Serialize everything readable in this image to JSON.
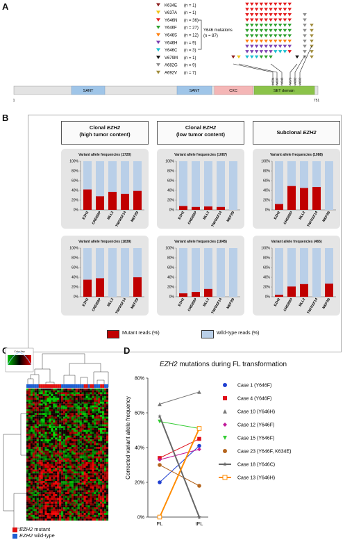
{
  "panelA": {
    "label": "A",
    "mutations": [
      {
        "name": "K634E",
        "count": "(n = 1)",
        "color": "#8b1a1a"
      },
      {
        "name": "V637A",
        "count": "(n = 1)",
        "color": "#f0c419"
      },
      {
        "name": "Y646N",
        "count": "(n = 36)",
        "color": "#e41a1c"
      },
      {
        "name": "Y646F",
        "count": "(n = 27)",
        "color": "#2ca02c"
      },
      {
        "name": "Y646S",
        "count": "(n = 12)",
        "color": "#ff7f0e"
      },
      {
        "name": "Y646H",
        "count": "(n = 9)",
        "color": "#7b3fb0"
      },
      {
        "name": "Y646C",
        "count": "(n = 3)",
        "color": "#17becf"
      },
      {
        "name": "V679M",
        "count": "(n = 1)",
        "color": "#111111"
      },
      {
        "name": "A682G",
        "count": "(n = 9)",
        "color": "#8c8c8c"
      },
      {
        "name": "A692V",
        "count": "(n = 7)",
        "color": "#a08c3c"
      }
    ],
    "bracket_label_1": "Y646 mutations",
    "bracket_label_2": "(n = 87)",
    "domains": [
      "SANT",
      "SANT",
      "CXC",
      "SET domain"
    ],
    "start": "1",
    "end": "751",
    "sites": [
      "K634",
      "V637",
      "Y646",
      "V679",
      "A682",
      "A692"
    ]
  },
  "panelB": {
    "label": "B",
    "groups": [
      {
        "title": "Clonal",
        "gene": "EZH2",
        "sub": "(high tumor content)"
      },
      {
        "title": "Clonal",
        "gene": "EZH2",
        "sub": "(low tumor content)"
      },
      {
        "title": "Subclonal",
        "gene": "EZH2",
        "sub": ""
      }
    ],
    "charts": [
      {
        "title": "Variant allele frequencies (1720)",
        "values": [
          42,
          28,
          37,
          33,
          39
        ]
      },
      {
        "title": "Variant allele frequencies (1087)",
        "values": [
          8,
          6,
          7,
          6,
          0
        ]
      },
      {
        "title": "Variant allele frequencies (1088)",
        "values": [
          12,
          49,
          45,
          47,
          0
        ]
      },
      {
        "title": "Variant allele frequencies (1839)",
        "values": [
          35,
          38,
          0,
          0,
          40
        ]
      },
      {
        "title": "Variant allele frequencies (1845)",
        "values": [
          7,
          10,
          16,
          0,
          0
        ]
      },
      {
        "title": "Variant allele frequencies (465)",
        "values": [
          4,
          21,
          26,
          0,
          27
        ]
      }
    ],
    "genes": [
      "EZH2",
      "CREBBP",
      "MLL2",
      "TNFRSF14",
      "MEF2B"
    ],
    "yticks": [
      "0%",
      "20%",
      "40%",
      "60%",
      "80%",
      "100%"
    ],
    "legend_mutant": "Mutant reads (%)",
    "legend_wt": "Wild-type reads (%)",
    "mutant_color": "#c00000",
    "wt_color": "#b9cfe8"
  },
  "panelC": {
    "label": "C",
    "colorkey": "Color Key",
    "legend_mutant_gene": "EZH2",
    "legend_mutant_rest": " mutant",
    "legend_wt_gene": "EZH2",
    "legend_wt_rest": " wild-type"
  },
  "chart_data": {
    "type": "line",
    "title": "EZH2 mutations during FL transformation",
    "ylabel": "Corrected variant allele frequency",
    "categories": [
      "FL",
      "tFL"
    ],
    "ylim": [
      0,
      80
    ],
    "yticks": [
      "0%",
      "20%",
      "40%",
      "60%",
      "80%"
    ],
    "series": [
      {
        "name": "Case 1 (Y646F)",
        "values": [
          20,
          41
        ],
        "color": "#1f3fd1",
        "marker": "circle"
      },
      {
        "name": "Case 4 (Y646F)",
        "values": [
          34,
          45
        ],
        "color": "#e0101a",
        "marker": "square"
      },
      {
        "name": "Case 10 (Y646H)",
        "values": [
          65,
          72
        ],
        "color": "#777777",
        "marker": "triangle"
      },
      {
        "name": "Case 12 (Y646F)",
        "values": [
          33,
          39
        ],
        "color": "#c0199a",
        "marker": "diamond"
      },
      {
        "name": "Case 15 (Y646F)",
        "values": [
          55,
          51
        ],
        "color": "#33cc33",
        "marker": "tri-down"
      },
      {
        "name": "Case 23 (Y646F, K634E)",
        "values": [
          30,
          18
        ],
        "color": "#b5651d",
        "marker": "circle"
      },
      {
        "name": "Case 18 (Y646C)",
        "values": [
          58,
          0
        ],
        "color": "#666666",
        "marker": "star"
      },
      {
        "name": "Case 13 (Y646H)",
        "values": [
          0,
          51
        ],
        "color": "#ff8c00",
        "marker": "square-open"
      }
    ]
  },
  "panelD": {
    "label": "D"
  }
}
